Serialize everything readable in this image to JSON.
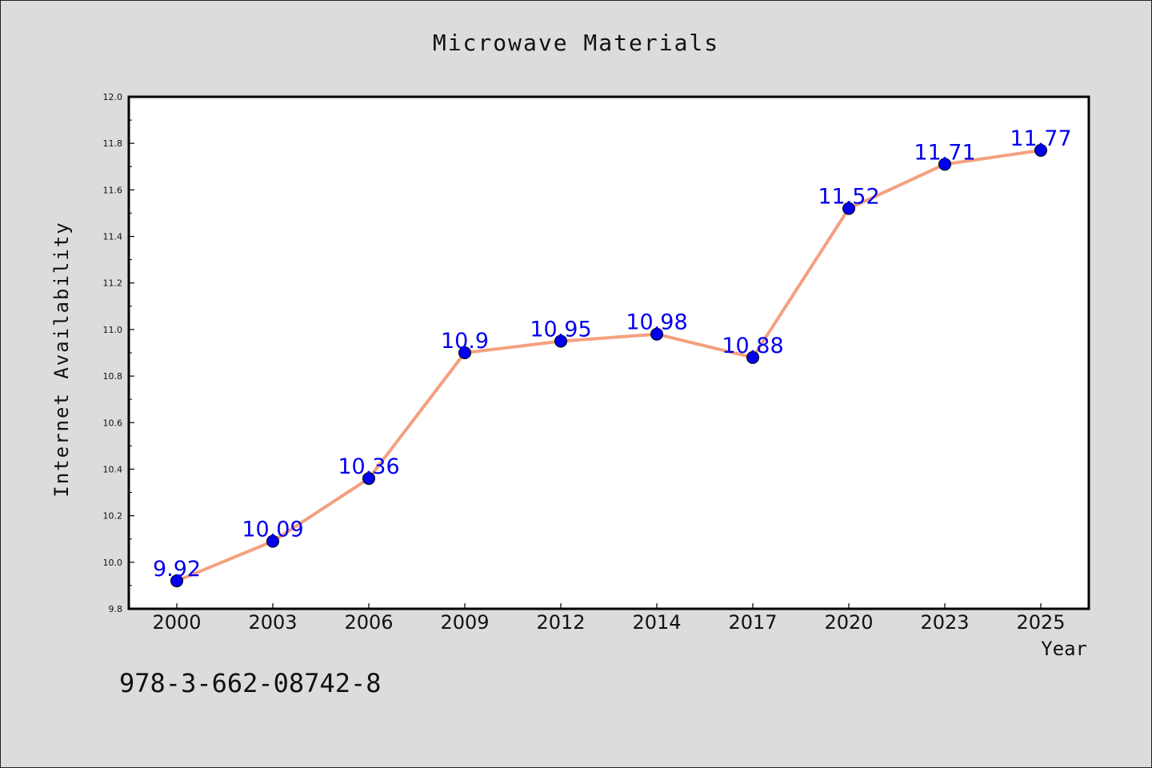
{
  "chart_data": {
    "type": "line",
    "title": "Microwave Materials",
    "xlabel": "Year",
    "ylabel": "Internet Availability",
    "categories": [
      "2000",
      "2003",
      "2006",
      "2009",
      "2012",
      "2014",
      "2017",
      "2020",
      "2023",
      "2025"
    ],
    "series": [
      {
        "values": [
          9.92,
          10.09,
          10.36,
          10.9,
          10.95,
          10.98,
          10.88,
          11.52,
          11.71,
          11.77
        ],
        "data_labels": [
          "9.92",
          "10.09",
          "10.36",
          "10.9",
          "10.95",
          "10.98",
          "10.88",
          "11.52",
          "11.71",
          "11.77"
        ]
      }
    ],
    "ylim": [
      9.8,
      12.0
    ],
    "yticks": [
      "9.8",
      "10.0",
      "10.2",
      "10.4",
      "10.6",
      "10.8",
      "11.0",
      "11.2",
      "11.4",
      "11.6",
      "11.8",
      "12.0"
    ],
    "grid": false,
    "legend": "none",
    "colors": {
      "line": "#f4a07f",
      "marker": "#0000ee",
      "data_label": "#0000ee",
      "background": "#dcdcdc",
      "plot_background": "#ffffff"
    }
  },
  "footer": {
    "isbn": "978-3-662-08742-8"
  }
}
